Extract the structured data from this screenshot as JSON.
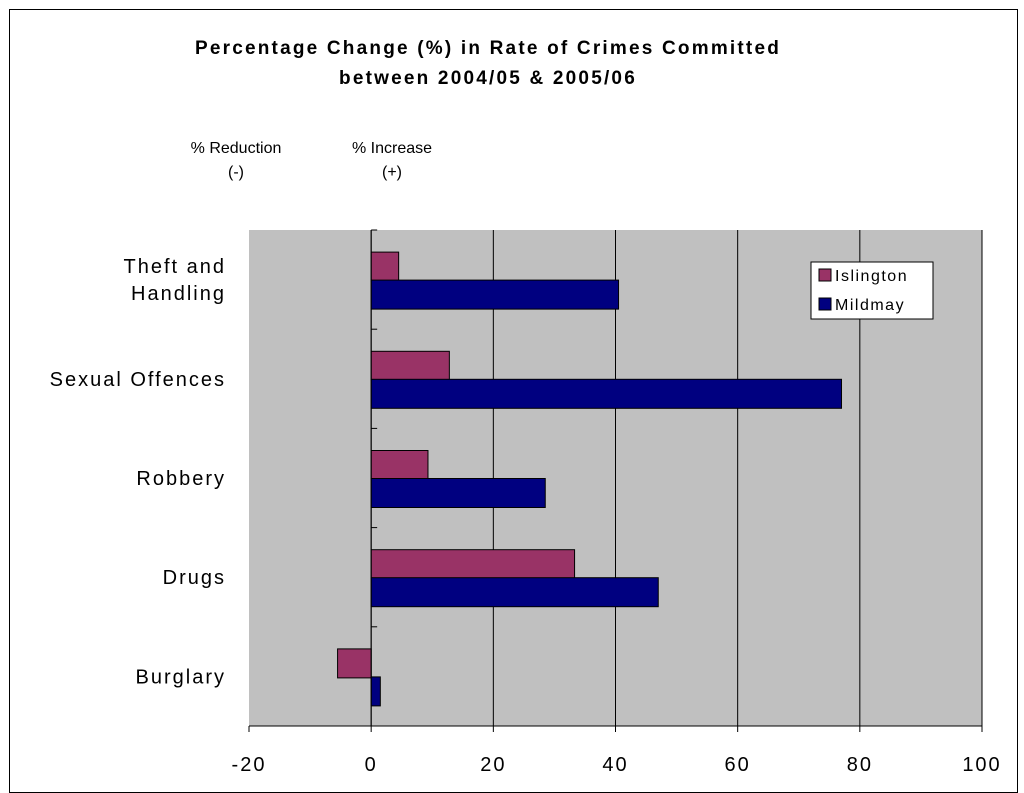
{
  "chart_data": {
    "type": "bar",
    "orientation": "horizontal",
    "title": [
      "Percentage Change (%) in Rate of Crimes Committed",
      "between 2004/05 & 2005/06"
    ],
    "annotations": {
      "reduction": [
        "% Reduction",
        "(-)"
      ],
      "increase": [
        "% Increase",
        "(+)"
      ]
    },
    "categories": [
      [
        "Theft and",
        "Handling"
      ],
      [
        "Sexual Offences"
      ],
      [
        "Robbery"
      ],
      [
        "Drugs"
      ],
      [
        "Burglary"
      ]
    ],
    "series": [
      {
        "name": "Islington",
        "color": "#993366",
        "values": [
          4.5,
          12.8,
          9.3,
          33.3,
          -5.5
        ]
      },
      {
        "name": "Mildmay",
        "color": "#000080",
        "values": [
          40.5,
          77.0,
          28.5,
          47.0,
          1.5
        ]
      }
    ],
    "xlim": [
      -20,
      100
    ],
    "xticks": [
      "-20",
      "0",
      "20",
      "40",
      "60",
      "80",
      "100"
    ],
    "grid": true,
    "legend_position": "top-right",
    "plot_background": "#c0c0c0"
  }
}
